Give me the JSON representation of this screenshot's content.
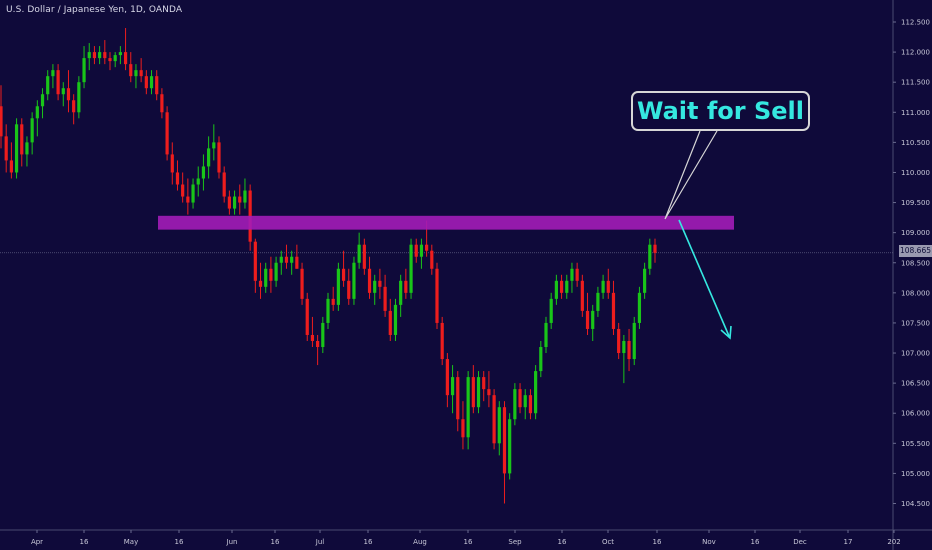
{
  "chart_data": {
    "type": "candlestick",
    "title": "U.S. Dollar / Japanese Yen, 1D, OANDA",
    "ylim": [
      104.3,
      112.75
    ],
    "y_ticks": [
      "112.500",
      "112.000",
      "111.500",
      "111.000",
      "110.500",
      "110.000",
      "109.500",
      "109.000",
      "108.500",
      "108.000",
      "107.500",
      "107.000",
      "106.500",
      "106.000",
      "105.500",
      "105.000",
      "104.500"
    ],
    "x_ticks": [
      "Apr",
      "16",
      "May",
      "16",
      "Jun",
      "16",
      "Jul",
      "16",
      "Aug",
      "16",
      "Sep",
      "16",
      "Oct",
      "16",
      "Nov",
      "16",
      "Dec",
      "17",
      "202"
    ],
    "current_price": "108.665",
    "sell_zone": {
      "low": 109.05,
      "high": 109.28
    },
    "annotation": "Wait for Sell",
    "colors": {
      "up": "#19c519",
      "down": "#ee1d1d",
      "zone": "#a31cb8",
      "arrow": "#35e8e0",
      "background": "#0f0a3a"
    },
    "candles": [
      [
        111.1,
        111.45,
        110.4,
        110.6
      ],
      [
        110.6,
        110.8,
        110.0,
        110.2
      ],
      [
        110.2,
        110.5,
        109.9,
        110.0
      ],
      [
        110.0,
        110.9,
        109.9,
        110.8
      ],
      [
        110.8,
        110.9,
        110.1,
        110.3
      ],
      [
        110.3,
        110.6,
        110.1,
        110.5
      ],
      [
        110.5,
        111.0,
        110.3,
        110.9
      ],
      [
        110.9,
        111.2,
        110.6,
        111.1
      ],
      [
        111.1,
        111.4,
        110.9,
        111.3
      ],
      [
        111.3,
        111.7,
        111.2,
        111.6
      ],
      [
        111.6,
        111.8,
        111.4,
        111.7
      ],
      [
        111.7,
        111.8,
        111.2,
        111.3
      ],
      [
        111.3,
        111.5,
        111.1,
        111.4
      ],
      [
        111.4,
        111.7,
        111.0,
        111.2
      ],
      [
        111.2,
        111.3,
        110.8,
        111.0
      ],
      [
        111.0,
        111.6,
        110.9,
        111.5
      ],
      [
        111.5,
        112.1,
        111.4,
        111.9
      ],
      [
        111.9,
        112.15,
        111.7,
        112.0
      ],
      [
        112.0,
        112.1,
        111.8,
        111.9
      ],
      [
        111.9,
        112.1,
        111.8,
        112.0
      ],
      [
        112.0,
        112.2,
        111.8,
        111.9
      ],
      [
        111.9,
        112.0,
        111.7,
        111.85
      ],
      [
        111.85,
        112.0,
        111.75,
        111.95
      ],
      [
        111.95,
        112.1,
        111.8,
        112.0
      ],
      [
        112.0,
        112.4,
        111.7,
        111.8
      ],
      [
        111.8,
        112.0,
        111.5,
        111.6
      ],
      [
        111.6,
        111.8,
        111.4,
        111.7
      ],
      [
        111.7,
        111.9,
        111.5,
        111.6
      ],
      [
        111.6,
        111.7,
        111.3,
        111.4
      ],
      [
        111.4,
        111.7,
        111.3,
        111.6
      ],
      [
        111.6,
        111.7,
        111.2,
        111.3
      ],
      [
        111.3,
        111.4,
        110.9,
        111.0
      ],
      [
        111.0,
        111.1,
        110.2,
        110.3
      ],
      [
        110.3,
        110.5,
        109.8,
        110.0
      ],
      [
        110.0,
        110.2,
        109.7,
        109.8
      ],
      [
        109.8,
        110.0,
        109.5,
        109.6
      ],
      [
        109.6,
        109.9,
        109.3,
        109.5
      ],
      [
        109.5,
        109.9,
        109.4,
        109.8
      ],
      [
        109.8,
        110.1,
        109.6,
        109.9
      ],
      [
        109.9,
        110.3,
        109.7,
        110.1
      ],
      [
        110.1,
        110.6,
        109.9,
        110.4
      ],
      [
        110.4,
        110.8,
        110.2,
        110.5
      ],
      [
        110.5,
        110.6,
        109.9,
        110.0
      ],
      [
        110.0,
        110.1,
        109.5,
        109.6
      ],
      [
        109.6,
        109.7,
        109.3,
        109.4
      ],
      [
        109.4,
        109.7,
        109.3,
        109.6
      ],
      [
        109.6,
        109.8,
        109.3,
        109.5
      ],
      [
        109.5,
        109.9,
        109.4,
        109.7
      ],
      [
        109.7,
        109.8,
        108.7,
        108.85
      ],
      [
        108.85,
        108.9,
        108.0,
        108.2
      ],
      [
        108.2,
        108.5,
        107.9,
        108.1
      ],
      [
        108.1,
        108.5,
        108.0,
        108.4
      ],
      [
        108.4,
        108.6,
        108.0,
        108.2
      ],
      [
        108.2,
        108.6,
        108.1,
        108.5
      ],
      [
        108.5,
        108.7,
        108.3,
        108.6
      ],
      [
        108.6,
        108.8,
        108.4,
        108.5
      ],
      [
        108.5,
        108.7,
        108.3,
        108.6
      ],
      [
        108.6,
        108.8,
        108.4,
        108.4
      ],
      [
        108.4,
        108.5,
        107.8,
        107.9
      ],
      [
        107.9,
        108.0,
        107.2,
        107.3
      ],
      [
        107.3,
        107.6,
        107.1,
        107.2
      ],
      [
        107.2,
        107.3,
        106.8,
        107.1
      ],
      [
        107.1,
        107.6,
        107.0,
        107.5
      ],
      [
        107.5,
        108.0,
        107.4,
        107.9
      ],
      [
        107.9,
        108.1,
        107.7,
        107.8
      ],
      [
        107.8,
        108.5,
        107.7,
        108.4
      ],
      [
        108.4,
        108.7,
        108.1,
        108.2
      ],
      [
        108.2,
        108.4,
        107.8,
        107.9
      ],
      [
        107.9,
        108.6,
        107.8,
        108.5
      ],
      [
        108.5,
        109.0,
        108.4,
        108.8
      ],
      [
        108.8,
        108.9,
        108.3,
        108.4
      ],
      [
        108.4,
        108.6,
        107.9,
        108.0
      ],
      [
        108.0,
        108.3,
        107.8,
        108.2
      ],
      [
        108.2,
        108.4,
        107.9,
        108.1
      ],
      [
        108.1,
        108.3,
        107.6,
        107.7
      ],
      [
        107.7,
        107.9,
        107.2,
        107.3
      ],
      [
        107.3,
        107.9,
        107.2,
        107.8
      ],
      [
        107.8,
        108.3,
        107.6,
        108.2
      ],
      [
        108.2,
        108.4,
        107.9,
        108.0
      ],
      [
        108.0,
        108.9,
        107.9,
        108.8
      ],
      [
        108.8,
        108.9,
        108.5,
        108.6
      ],
      [
        108.6,
        108.9,
        108.4,
        108.8
      ],
      [
        108.8,
        109.2,
        108.6,
        108.7
      ],
      [
        108.7,
        108.8,
        108.3,
        108.4
      ],
      [
        108.4,
        108.5,
        107.4,
        107.5
      ],
      [
        107.5,
        107.6,
        106.8,
        106.9
      ],
      [
        106.9,
        107.0,
        106.1,
        106.3
      ],
      [
        106.3,
        106.8,
        106.0,
        106.6
      ],
      [
        106.6,
        106.7,
        105.7,
        105.9
      ],
      [
        105.9,
        106.2,
        105.4,
        105.6
      ],
      [
        105.6,
        106.7,
        105.4,
        106.6
      ],
      [
        106.6,
        106.8,
        106.0,
        106.1
      ],
      [
        106.1,
        106.7,
        106.0,
        106.6
      ],
      [
        106.6,
        106.7,
        106.2,
        106.4
      ],
      [
        106.4,
        106.7,
        106.1,
        106.3
      ],
      [
        106.3,
        106.4,
        105.4,
        105.5
      ],
      [
        105.5,
        106.2,
        105.3,
        106.1
      ],
      [
        106.1,
        106.2,
        104.5,
        105.0
      ],
      [
        105.0,
        106.0,
        104.9,
        105.9
      ],
      [
        105.9,
        106.5,
        105.8,
        106.4
      ],
      [
        106.4,
        106.5,
        106.0,
        106.1
      ],
      [
        106.1,
        106.4,
        105.9,
        106.3
      ],
      [
        106.3,
        106.4,
        105.9,
        106.0
      ],
      [
        106.0,
        106.8,
        105.9,
        106.7
      ],
      [
        106.7,
        107.2,
        106.6,
        107.1
      ],
      [
        107.1,
        107.6,
        107.0,
        107.5
      ],
      [
        107.5,
        108.0,
        107.4,
        107.9
      ],
      [
        107.9,
        108.3,
        107.8,
        108.2
      ],
      [
        108.2,
        108.3,
        107.9,
        108.0
      ],
      [
        108.0,
        108.3,
        107.9,
        108.2
      ],
      [
        108.2,
        108.5,
        108.0,
        108.4
      ],
      [
        108.4,
        108.5,
        108.1,
        108.2
      ],
      [
        108.2,
        108.3,
        107.6,
        107.7
      ],
      [
        107.7,
        108.0,
        107.3,
        107.4
      ],
      [
        107.4,
        107.8,
        107.2,
        107.7
      ],
      [
        107.7,
        108.1,
        107.6,
        108.0
      ],
      [
        108.0,
        108.3,
        107.9,
        108.2
      ],
      [
        108.2,
        108.4,
        107.9,
        108.0
      ],
      [
        108.0,
        108.2,
        107.3,
        107.4
      ],
      [
        107.4,
        107.5,
        106.9,
        107.0
      ],
      [
        107.0,
        107.3,
        106.5,
        107.2
      ],
      [
        107.2,
        107.4,
        106.7,
        106.9
      ],
      [
        106.9,
        107.6,
        106.8,
        107.5
      ],
      [
        107.5,
        108.1,
        107.4,
        108.0
      ],
      [
        108.0,
        108.5,
        107.9,
        108.4
      ],
      [
        108.4,
        108.9,
        108.3,
        108.8
      ],
      [
        108.8,
        108.9,
        108.5,
        108.665
      ]
    ]
  }
}
